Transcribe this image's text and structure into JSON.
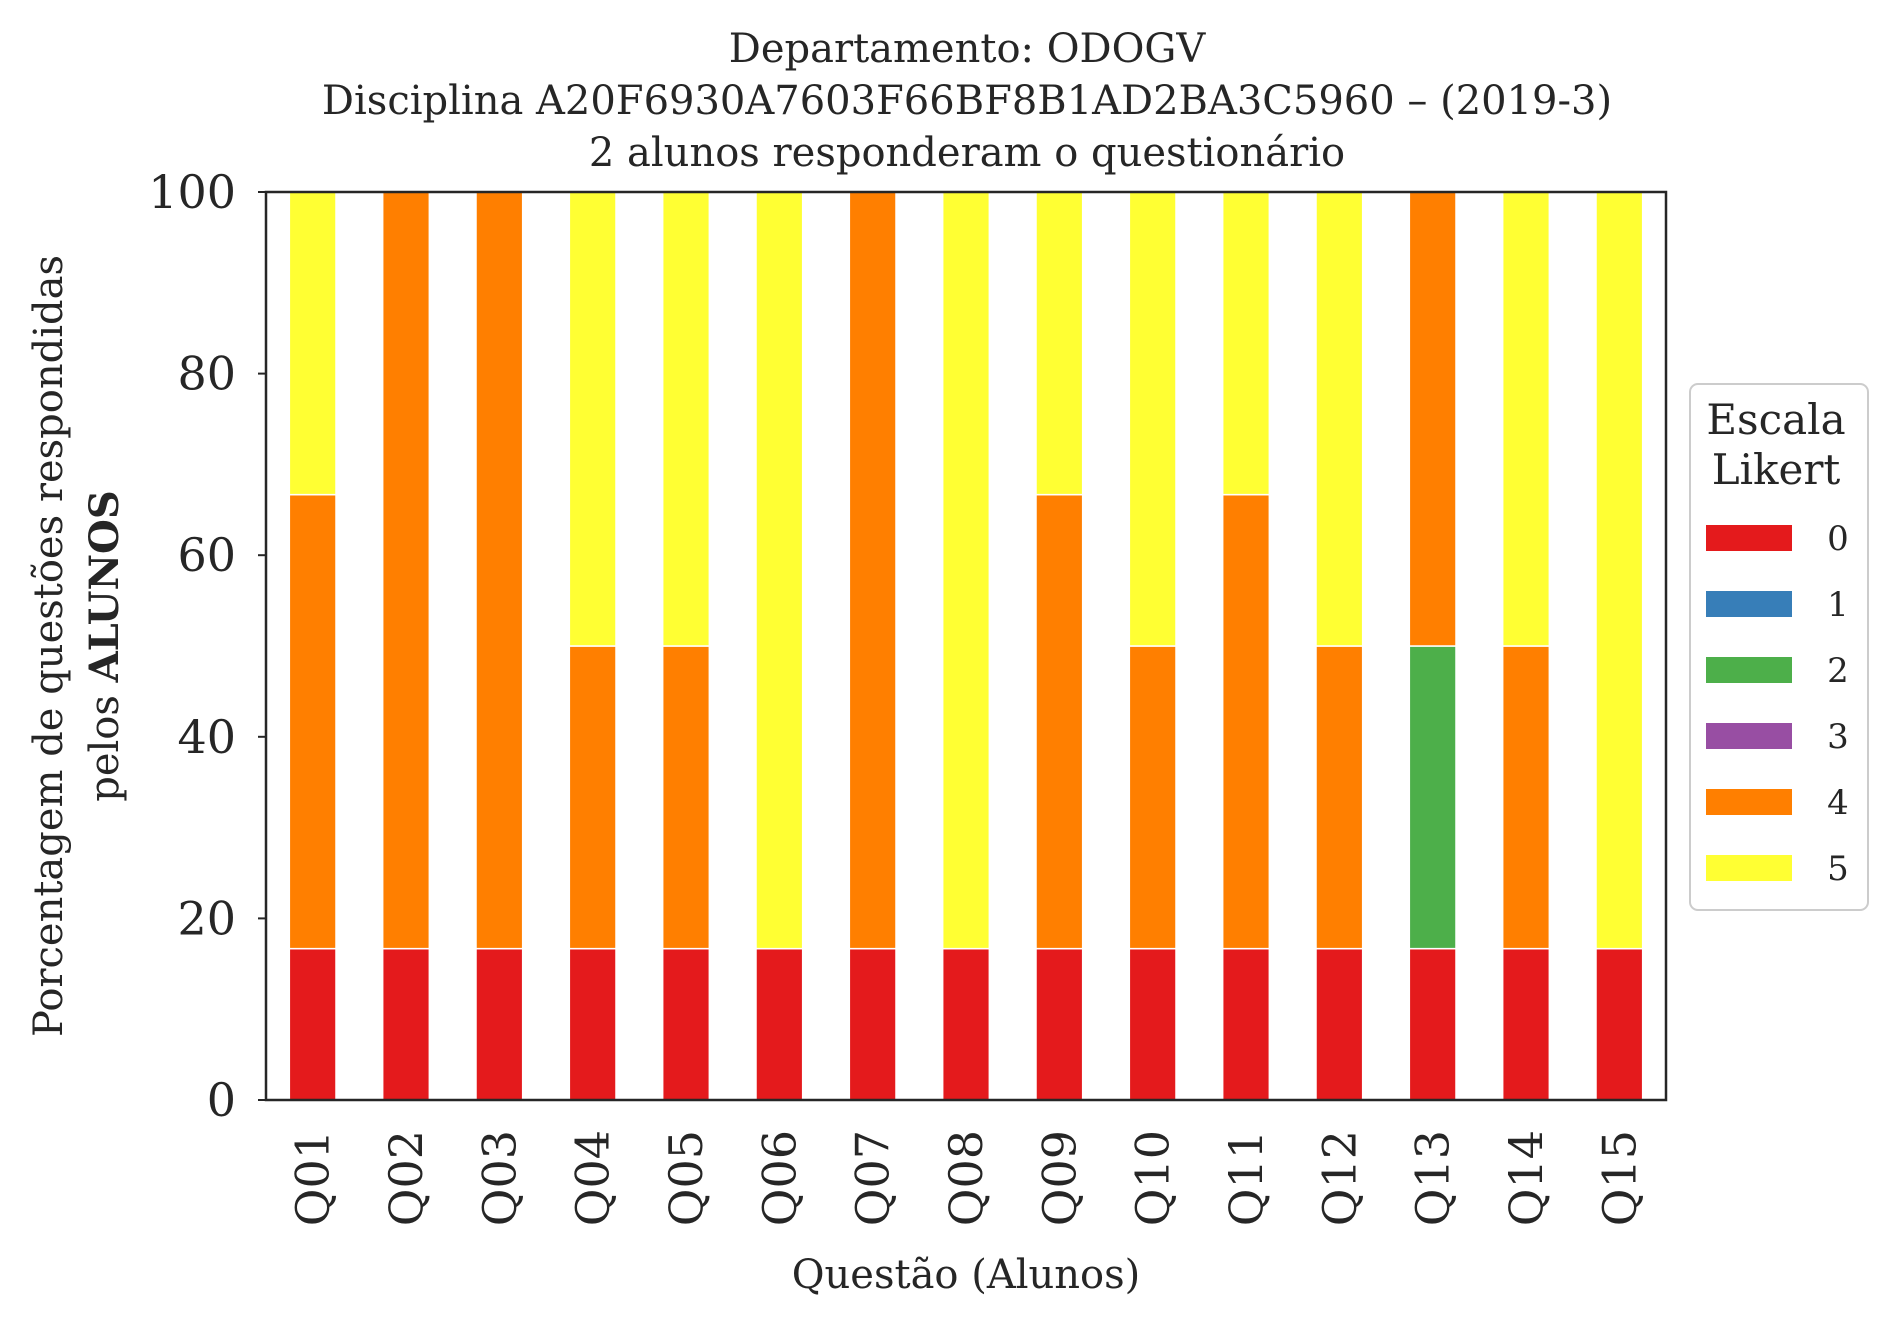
{
  "chart_data": {
    "type": "bar",
    "stacked": true,
    "title": [
      "Departamento: ODOGV",
      "Disciplina A20F6930A7603F66BF8B1AD2BA3C5960 – (2019-3)",
      "2 alunos responderam o questionário"
    ],
    "xlabel": "Questão (Alunos)",
    "ylabel_line1": "Porcentagem de questões respondidas",
    "ylabel_line2_prefix": "pelos ",
    "ylabel_line2_bold": "ALUNOS",
    "ylim": [
      0,
      100
    ],
    "yticks": [
      "0",
      "20",
      "40",
      "60",
      "80",
      "100"
    ],
    "grid": false,
    "legend": {
      "title_line1": "Escala",
      "title_line2": "Likert",
      "placement": "right"
    },
    "categories": [
      "Q01",
      "Q02",
      "Q03",
      "Q04",
      "Q05",
      "Q06",
      "Q07",
      "Q08",
      "Q09",
      "Q10",
      "Q11",
      "Q12",
      "Q13",
      "Q14",
      "Q15"
    ],
    "series": [
      {
        "name": "0",
        "color": "#e41a1c",
        "values": [
          16.67,
          16.67,
          16.67,
          16.67,
          16.67,
          16.67,
          16.67,
          16.67,
          16.67,
          16.67,
          16.67,
          16.67,
          16.67,
          16.67,
          16.67
        ]
      },
      {
        "name": "1",
        "color": "#377eb8",
        "values": [
          0,
          0,
          0,
          0,
          0,
          0,
          0,
          0,
          0,
          0,
          0,
          0,
          0,
          0,
          0
        ]
      },
      {
        "name": "2",
        "color": "#4daf4a",
        "values": [
          0,
          0,
          0,
          0,
          0,
          0,
          0,
          0,
          0,
          0,
          0,
          0,
          33.33,
          0,
          0
        ]
      },
      {
        "name": "3",
        "color": "#984ea3",
        "values": [
          0,
          0,
          0,
          0,
          0,
          0,
          0,
          0,
          0,
          0,
          0,
          0,
          0,
          0,
          0
        ]
      },
      {
        "name": "4",
        "color": "#ff7f00",
        "values": [
          50,
          83.33,
          83.33,
          33.33,
          33.33,
          0,
          83.33,
          0,
          50,
          33.33,
          50,
          33.33,
          50,
          33.33,
          0
        ]
      },
      {
        "name": "5",
        "color": "#ffff33",
        "values": [
          33.33,
          0,
          0,
          50,
          50,
          83.33,
          0,
          83.33,
          33.33,
          50,
          33.33,
          50,
          0,
          50,
          83.33
        ]
      }
    ]
  }
}
